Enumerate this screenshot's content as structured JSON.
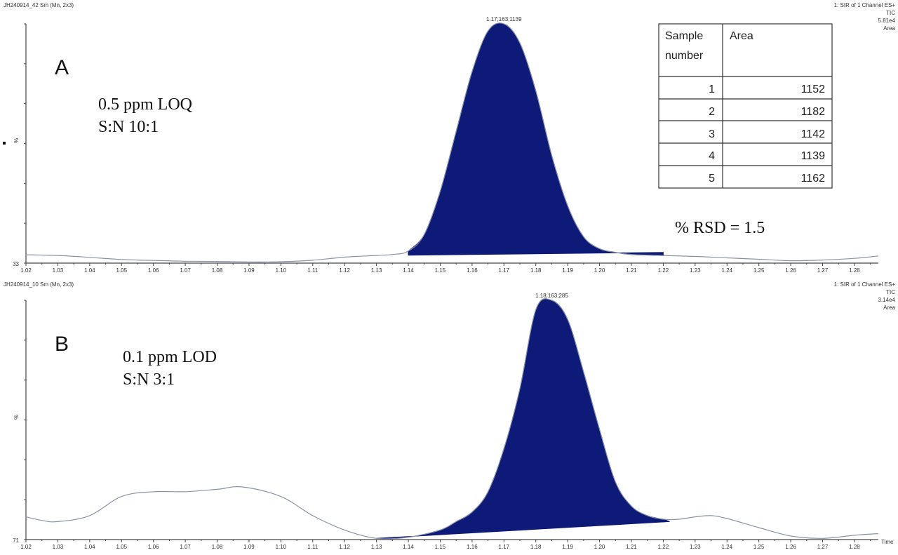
{
  "colors": {
    "peak_fill": "#0d1a78",
    "trace": "#8a93a6",
    "axis": "#444444",
    "text": "#222222"
  },
  "chart_data": [
    {
      "type": "line",
      "panel": "A",
      "header_left": "JH240914_42 Sm (Mn, 2x3)",
      "header_right": [
        "1: SIR of 1 Channel ES+",
        "TIC",
        "5.81e4",
        "Area"
      ],
      "peak_label": "1.17;163;1139",
      "y_axis_label": "%",
      "y_min_label": "33",
      "annotations": [
        "0.5 ppm LOQ",
        "S:N 10:1"
      ],
      "rsd_text": "% RSD = 1.5",
      "x_ticks": [
        "1.02",
        "1.03",
        "1.04",
        "1.05",
        "1.06",
        "1.07",
        "1.08",
        "1.09",
        "1.10",
        "1.11",
        "1.12",
        "1.13",
        "1.14",
        "1.15",
        "1.16",
        "1.17",
        "1.18",
        "1.19",
        "1.20",
        "1.21",
        "1.22",
        "1.23",
        "1.24",
        "1.25",
        "1.26",
        "1.27",
        "1.28"
      ],
      "xlim": [
        1.02,
        1.2875
      ],
      "ylim": [
        0,
        100
      ],
      "trace": {
        "x": [
          1.02,
          1.03,
          1.04,
          1.05,
          1.06,
          1.07,
          1.08,
          1.09,
          1.1,
          1.11,
          1.12,
          1.13,
          1.135,
          1.14,
          1.145,
          1.15,
          1.155,
          1.16,
          1.165,
          1.17,
          1.175,
          1.18,
          1.185,
          1.19,
          1.195,
          1.2,
          1.205,
          1.21,
          1.22,
          1.23,
          1.24,
          1.25,
          1.26,
          1.27,
          1.28,
          1.2875
        ],
        "y": [
          3.5,
          3.2,
          2.4,
          1.5,
          1.1,
          0.8,
          0.7,
          0.5,
          0.6,
          1.2,
          2.5,
          3.2,
          3.6,
          5,
          12,
          30,
          55,
          80,
          97,
          100,
          92,
          72,
          45,
          24,
          11,
          6,
          4.5,
          3.6,
          3.2,
          2.8,
          2.2,
          1.6,
          1.0,
          1.3,
          2.0,
          3.0
        ]
      },
      "integration": {
        "x_start": 1.14,
        "x_end": 1.22,
        "baseline_start": 3.3,
        "baseline_end": 4.5
      },
      "table": {
        "headers": [
          "Sample\nnumber",
          "Area"
        ],
        "rows": [
          [
            "1",
            "1152"
          ],
          [
            "2",
            "1182"
          ],
          [
            "3",
            "1142"
          ],
          [
            "4",
            "1139"
          ],
          [
            "5",
            "1162"
          ]
        ]
      }
    },
    {
      "type": "line",
      "panel": "B",
      "header_left": "JH240914_10 Sm (Mn, 2x3)",
      "header_right": [
        "1: SIR of 1 Channel ES+",
        "TIC",
        "3.14e4",
        "Area"
      ],
      "peak_label": "1.18;163;285",
      "y_axis_label": "%",
      "y_min_label": "71",
      "annotations": [
        "0.1 ppm LOD",
        "S:N 3:1"
      ],
      "x_ticks": [
        "1.02",
        "1.03",
        "1.04",
        "1.05",
        "1.06",
        "1.07",
        "1.08",
        "1.09",
        "1.10",
        "1.11",
        "1.12",
        "1.13",
        "1.14",
        "1.15",
        "1.16",
        "1.17",
        "1.18",
        "1.19",
        "1.20",
        "1.21",
        "1.22",
        "1.23",
        "1.24",
        "1.25",
        "1.26",
        "1.27",
        "1.28"
      ],
      "x_label": "Time",
      "xlim": [
        1.02,
        1.2875
      ],
      "ylim": [
        0,
        100
      ],
      "trace": {
        "x": [
          1.02,
          1.025,
          1.03,
          1.04,
          1.05,
          1.06,
          1.07,
          1.08,
          1.088,
          1.1,
          1.11,
          1.12,
          1.13,
          1.14,
          1.15,
          1.155,
          1.16,
          1.165,
          1.17,
          1.175,
          1.18,
          1.185,
          1.19,
          1.195,
          1.2,
          1.205,
          1.21,
          1.215,
          1.22,
          1.225,
          1.23,
          1.235,
          1.24,
          1.25,
          1.26,
          1.27,
          1.28,
          1.2875
        ],
        "y": [
          9.5,
          8,
          7.5,
          10,
          18,
          20,
          20,
          21,
          22,
          18,
          10,
          4,
          0.5,
          1,
          4,
          7.5,
          11.5,
          20,
          38,
          63,
          96,
          100,
          92,
          70,
          46,
          24,
          14,
          10,
          8.5,
          8.5,
          9.5,
          10,
          8.8,
          5,
          1.5,
          0.5,
          1.8,
          2.5
        ]
      },
      "integration": {
        "x_start": 1.13,
        "x_end": 1.222,
        "baseline_start": 0.5,
        "baseline_end": 7.5
      }
    }
  ]
}
